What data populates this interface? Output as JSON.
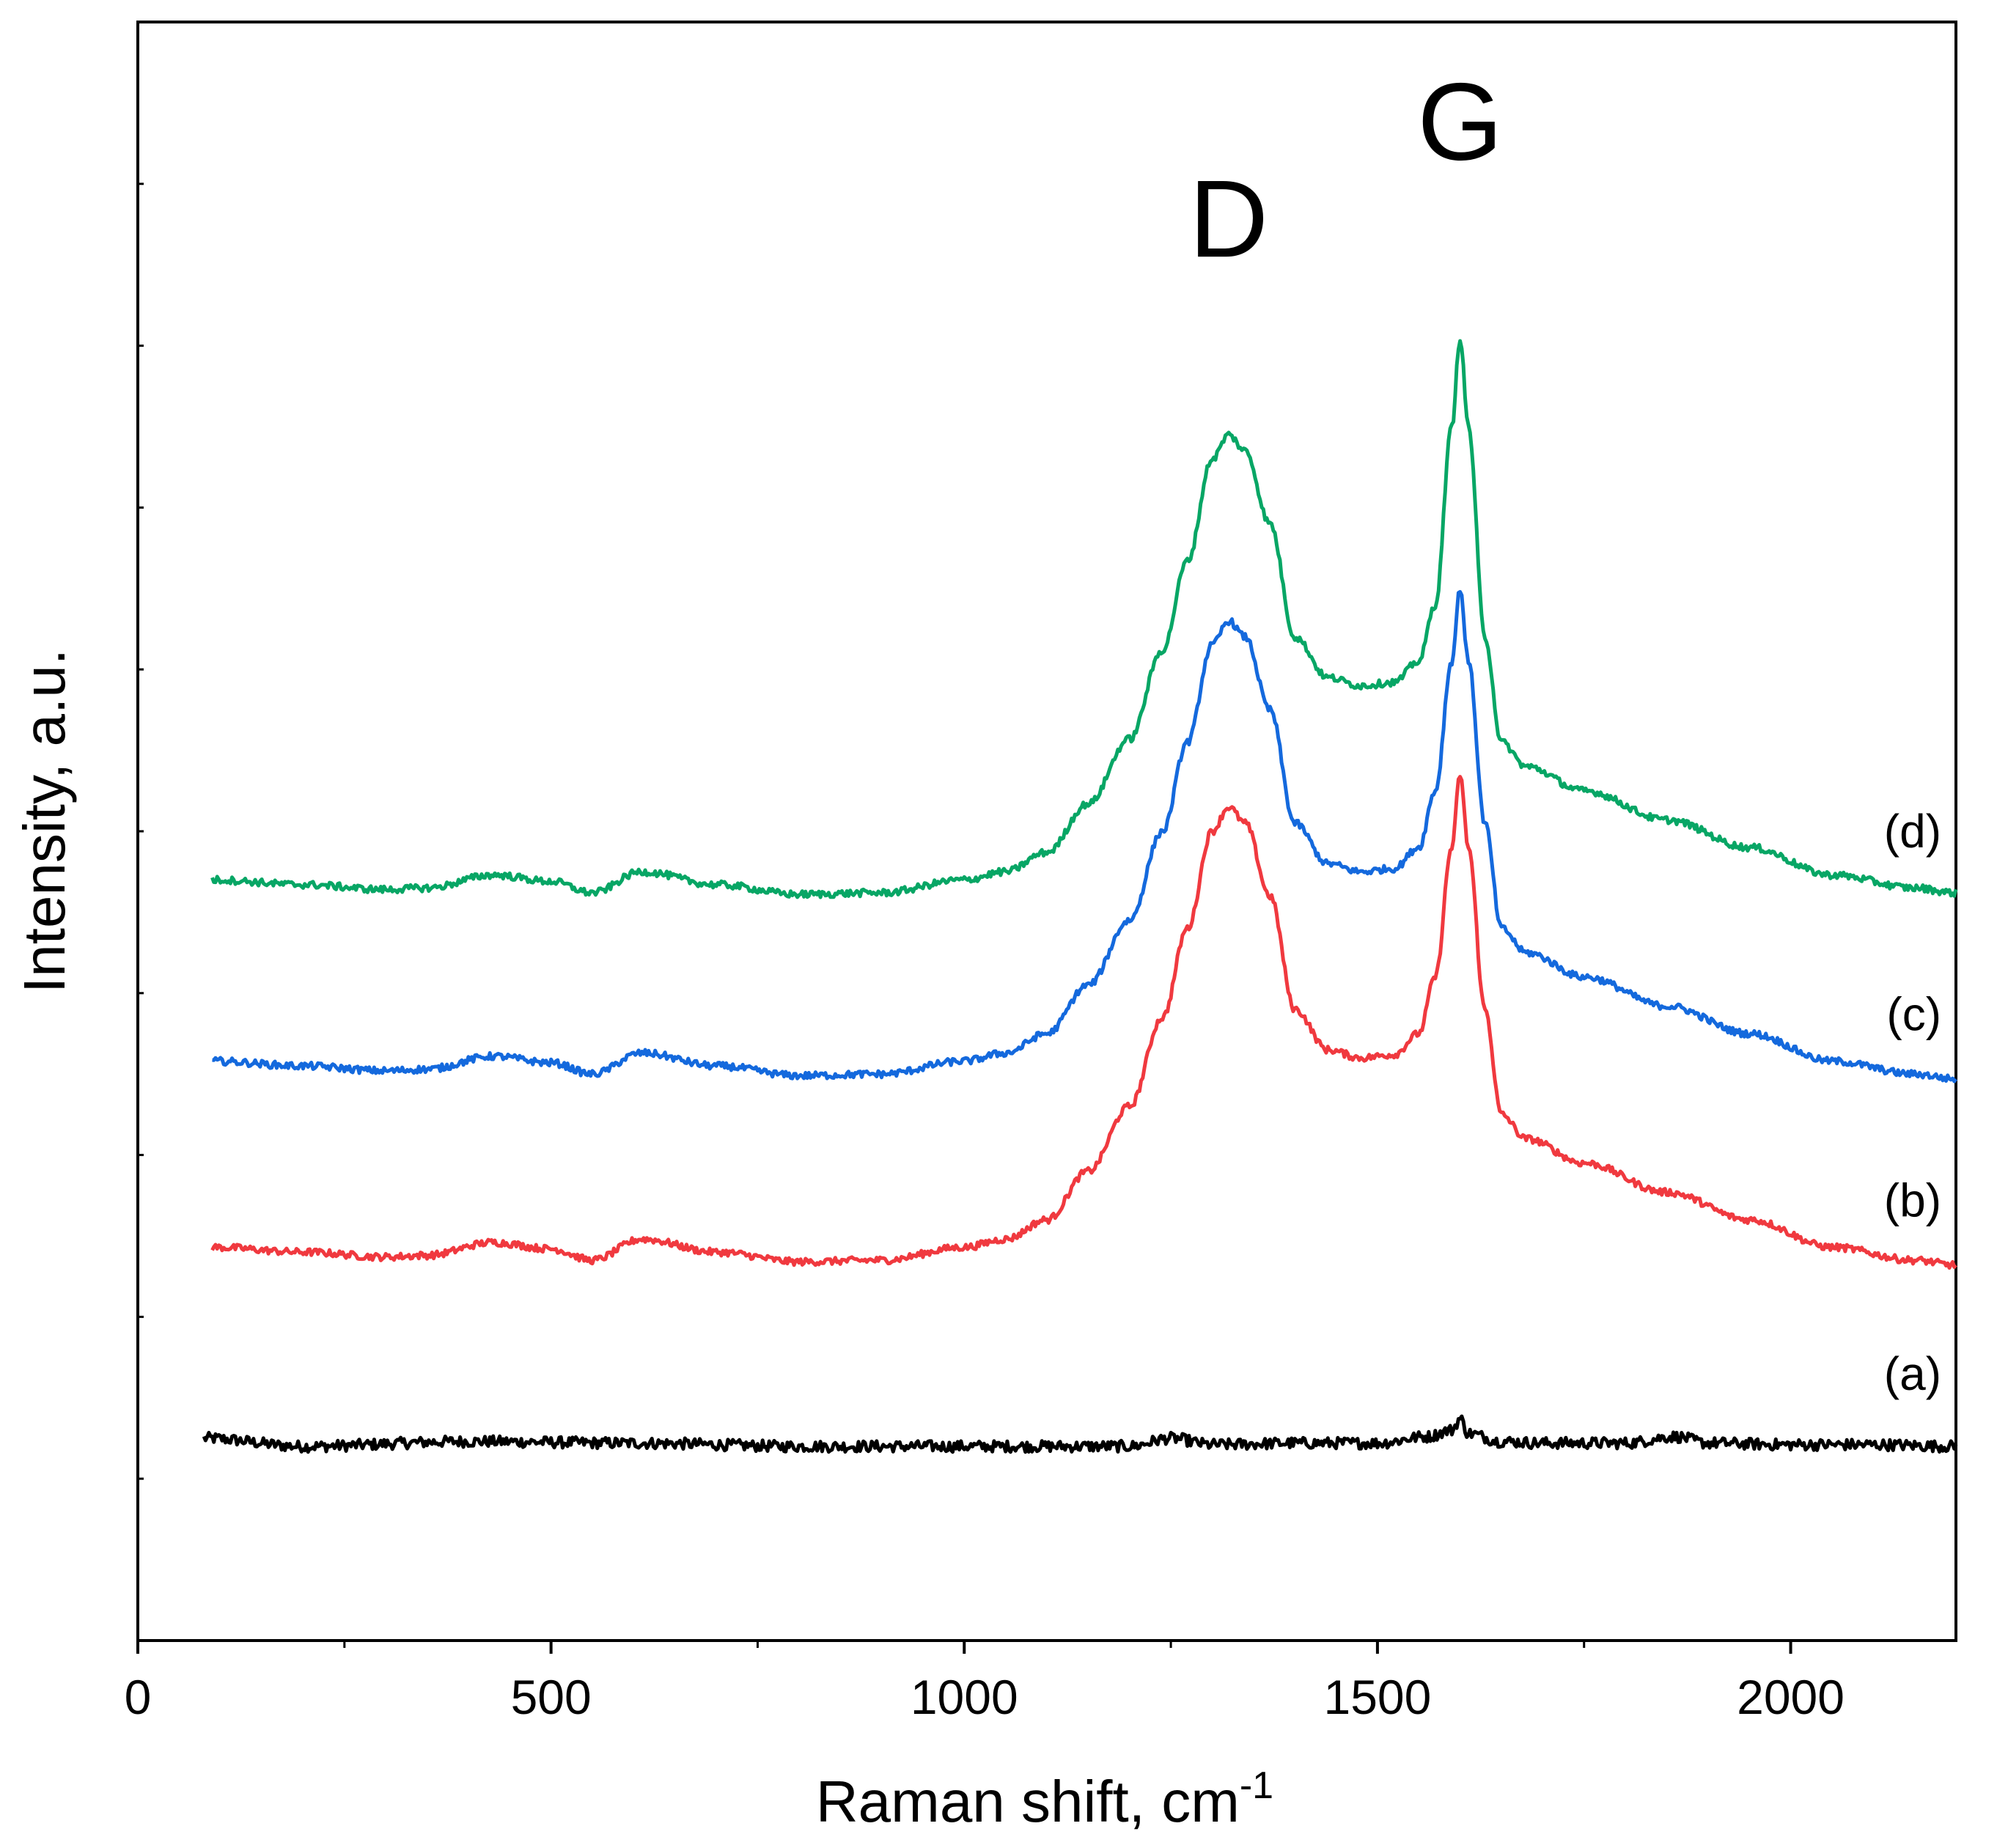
{
  "chart_data": {
    "type": "line",
    "title": "",
    "xlabel": "Raman shift, cm",
    "xlabel_superscript": "-1",
    "ylabel": "Intensity, a.u.",
    "xlim": [
      0,
      2200
    ],
    "ylim": [
      0,
      1.0
    ],
    "x_ticks": [
      0,
      500,
      1000,
      1500,
      2000
    ],
    "x_tick_labels": [
      "0",
      "500",
      "1000",
      "1500",
      "2000"
    ],
    "y_tick_labels_shown": false,
    "grid": false,
    "legend": "labels at right end of each trace",
    "annotations": [
      {
        "text": "D",
        "x": 1320,
        "y": 0.855
      },
      {
        "text": "G",
        "x": 1600,
        "y": 0.915
      }
    ],
    "series": [
      {
        "name": "(a)",
        "color": "#000000",
        "x": [
          80,
          200,
          400,
          600,
          800,
          1000,
          1200,
          1250,
          1300,
          1400,
          1500,
          1560,
          1590,
          1600,
          1610,
          1650,
          1700,
          1800,
          1860,
          1900,
          2000,
          2100,
          2200
        ],
        "y": [
          0.125,
          0.12,
          0.123,
          0.122,
          0.12,
          0.12,
          0.12,
          0.125,
          0.121,
          0.122,
          0.122,
          0.126,
          0.13,
          0.137,
          0.128,
          0.123,
          0.122,
          0.122,
          0.126,
          0.122,
          0.121,
          0.121,
          0.12
        ],
        "label_y": 0.155
      },
      {
        "name": "(b)",
        "color": "#f0393f",
        "x": [
          90,
          200,
          300,
          350,
          430,
          500,
          550,
          610,
          700,
          800,
          900,
          1000,
          1050,
          1100,
          1150,
          1200,
          1240,
          1270,
          1300,
          1320,
          1340,
          1370,
          1400,
          1440,
          1480,
          1520,
          1550,
          1570,
          1590,
          1600,
          1610,
          1630,
          1650,
          1680,
          1750,
          1850,
          1950,
          2050,
          2150,
          2200
        ],
        "y": [
          0.243,
          0.24,
          0.237,
          0.238,
          0.246,
          0.242,
          0.235,
          0.248,
          0.24,
          0.234,
          0.235,
          0.243,
          0.248,
          0.26,
          0.29,
          0.33,
          0.385,
          0.44,
          0.5,
          0.515,
          0.505,
          0.46,
          0.39,
          0.365,
          0.36,
          0.362,
          0.375,
          0.41,
          0.49,
          0.535,
          0.49,
          0.39,
          0.325,
          0.31,
          0.295,
          0.277,
          0.26,
          0.243,
          0.235,
          0.232
        ],
        "label_y": 0.262
      },
      {
        "name": "(c)",
        "color": "#1469dd",
        "x": [
          90,
          200,
          300,
          350,
          430,
          500,
          550,
          610,
          700,
          800,
          900,
          1000,
          1050,
          1100,
          1150,
          1200,
          1240,
          1270,
          1300,
          1320,
          1340,
          1370,
          1400,
          1440,
          1480,
          1520,
          1550,
          1570,
          1590,
          1600,
          1610,
          1630,
          1650,
          1680,
          1750,
          1850,
          1950,
          2050,
          2150,
          2200
        ],
        "y": [
          0.358,
          0.355,
          0.352,
          0.353,
          0.361,
          0.357,
          0.35,
          0.363,
          0.355,
          0.349,
          0.35,
          0.358,
          0.363,
          0.375,
          0.405,
          0.445,
          0.5,
          0.555,
          0.615,
          0.63,
          0.62,
          0.575,
          0.505,
          0.48,
          0.475,
          0.477,
          0.49,
          0.525,
          0.605,
          0.65,
          0.605,
          0.505,
          0.44,
          0.425,
          0.41,
          0.392,
          0.375,
          0.358,
          0.35,
          0.347
        ],
        "label_y": 0.377
      },
      {
        "name": "(d)",
        "color": "#07a665",
        "x": [
          90,
          200,
          300,
          350,
          430,
          500,
          550,
          610,
          700,
          800,
          900,
          1000,
          1050,
          1100,
          1150,
          1200,
          1240,
          1270,
          1300,
          1320,
          1340,
          1370,
          1400,
          1440,
          1480,
          1520,
          1550,
          1570,
          1590,
          1600,
          1610,
          1630,
          1650,
          1680,
          1750,
          1850,
          1950,
          2050,
          2150,
          2200
        ],
        "y": [
          0.47,
          0.467,
          0.464,
          0.465,
          0.473,
          0.469,
          0.462,
          0.475,
          0.467,
          0.461,
          0.462,
          0.47,
          0.475,
          0.487,
          0.517,
          0.557,
          0.612,
          0.667,
          0.73,
          0.745,
          0.735,
          0.69,
          0.62,
          0.595,
          0.59,
          0.592,
          0.605,
          0.64,
          0.75,
          0.805,
          0.75,
          0.62,
          0.555,
          0.54,
          0.525,
          0.507,
          0.49,
          0.473,
          0.465,
          0.462
        ],
        "label_y": 0.49
      }
    ]
  }
}
